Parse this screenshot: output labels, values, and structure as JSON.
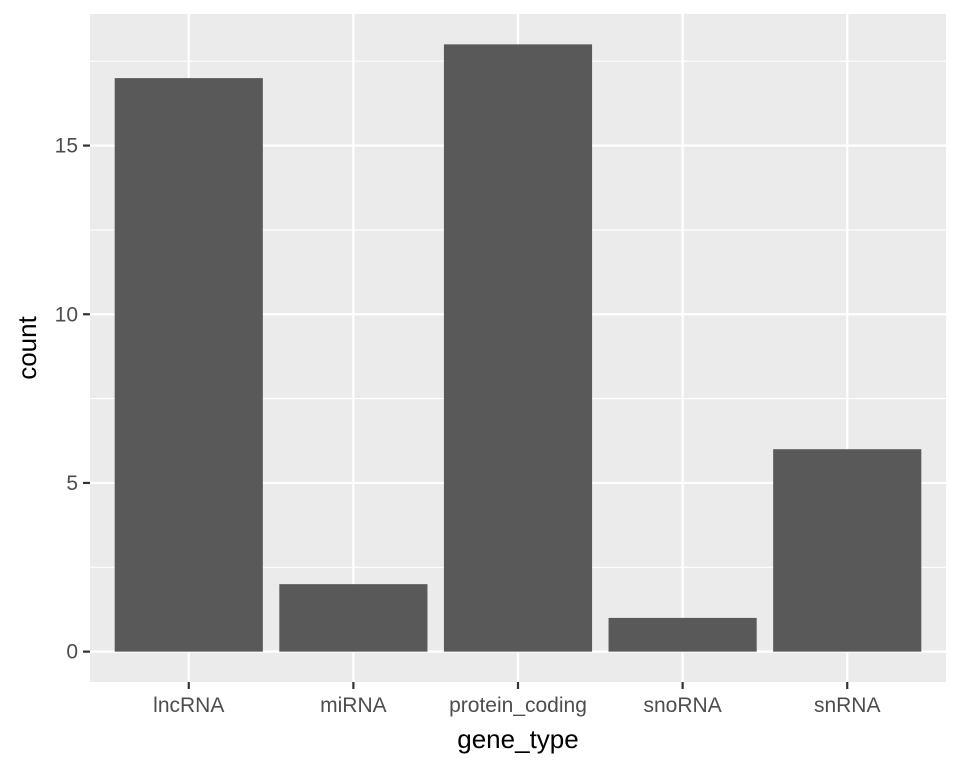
{
  "chart_data": {
    "type": "bar",
    "title": "",
    "xlabel": "gene_type",
    "ylabel": "count",
    "categories": [
      "lncRNA",
      "miRNA",
      "protein_coding",
      "snoRNA",
      "snRNA"
    ],
    "values": [
      17,
      2,
      18,
      1,
      6
    ],
    "ylim": [
      -0.9,
      18.9
    ],
    "yticks": [
      0,
      5,
      10,
      15
    ],
    "ytick_labels": [
      "0",
      "5",
      "10",
      "15"
    ],
    "grid": true,
    "legend": "none"
  },
  "colors": {
    "panel_background": "#EBEBEB",
    "grid_major": "#FFFFFF",
    "bar_fill": "#595959",
    "tick_mark": "#333333",
    "tick_label": "#4D4D4D",
    "axis_title": "#000000"
  }
}
